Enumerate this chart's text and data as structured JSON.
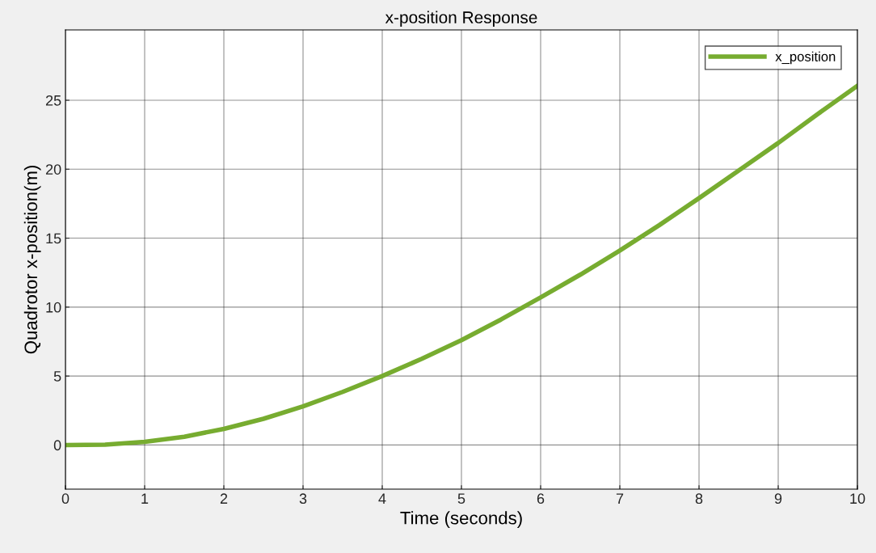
{
  "chart_data": {
    "type": "line",
    "title": "x-position Response",
    "xlabel": "Time (seconds)",
    "ylabel": "Quadrotor x-position(m)",
    "x": [
      0,
      0.5,
      1,
      1.5,
      2,
      2.5,
      3,
      3.5,
      4,
      4.5,
      5,
      5.5,
      6,
      6.5,
      7,
      7.5,
      8,
      8.5,
      9,
      9.5,
      10
    ],
    "series": [
      {
        "name": "x_position",
        "color": "#77ac30",
        "values": [
          0,
          0.03,
          0.23,
          0.6,
          1.17,
          1.9,
          2.8,
          3.85,
          5.0,
          6.25,
          7.6,
          9.1,
          10.7,
          12.35,
          14.1,
          15.95,
          17.9,
          19.9,
          21.9,
          24.0,
          26.05
        ]
      }
    ],
    "xlim": [
      0,
      10
    ],
    "ylim": [
      -3.2,
      30.1
    ],
    "xticks": [
      0,
      1,
      2,
      3,
      4,
      5,
      6,
      7,
      8,
      9,
      10
    ],
    "yticks": [
      0,
      5,
      10,
      15,
      20,
      25
    ],
    "grid": true,
    "legend": "top right",
    "marker": "none",
    "line_style": "solid"
  }
}
